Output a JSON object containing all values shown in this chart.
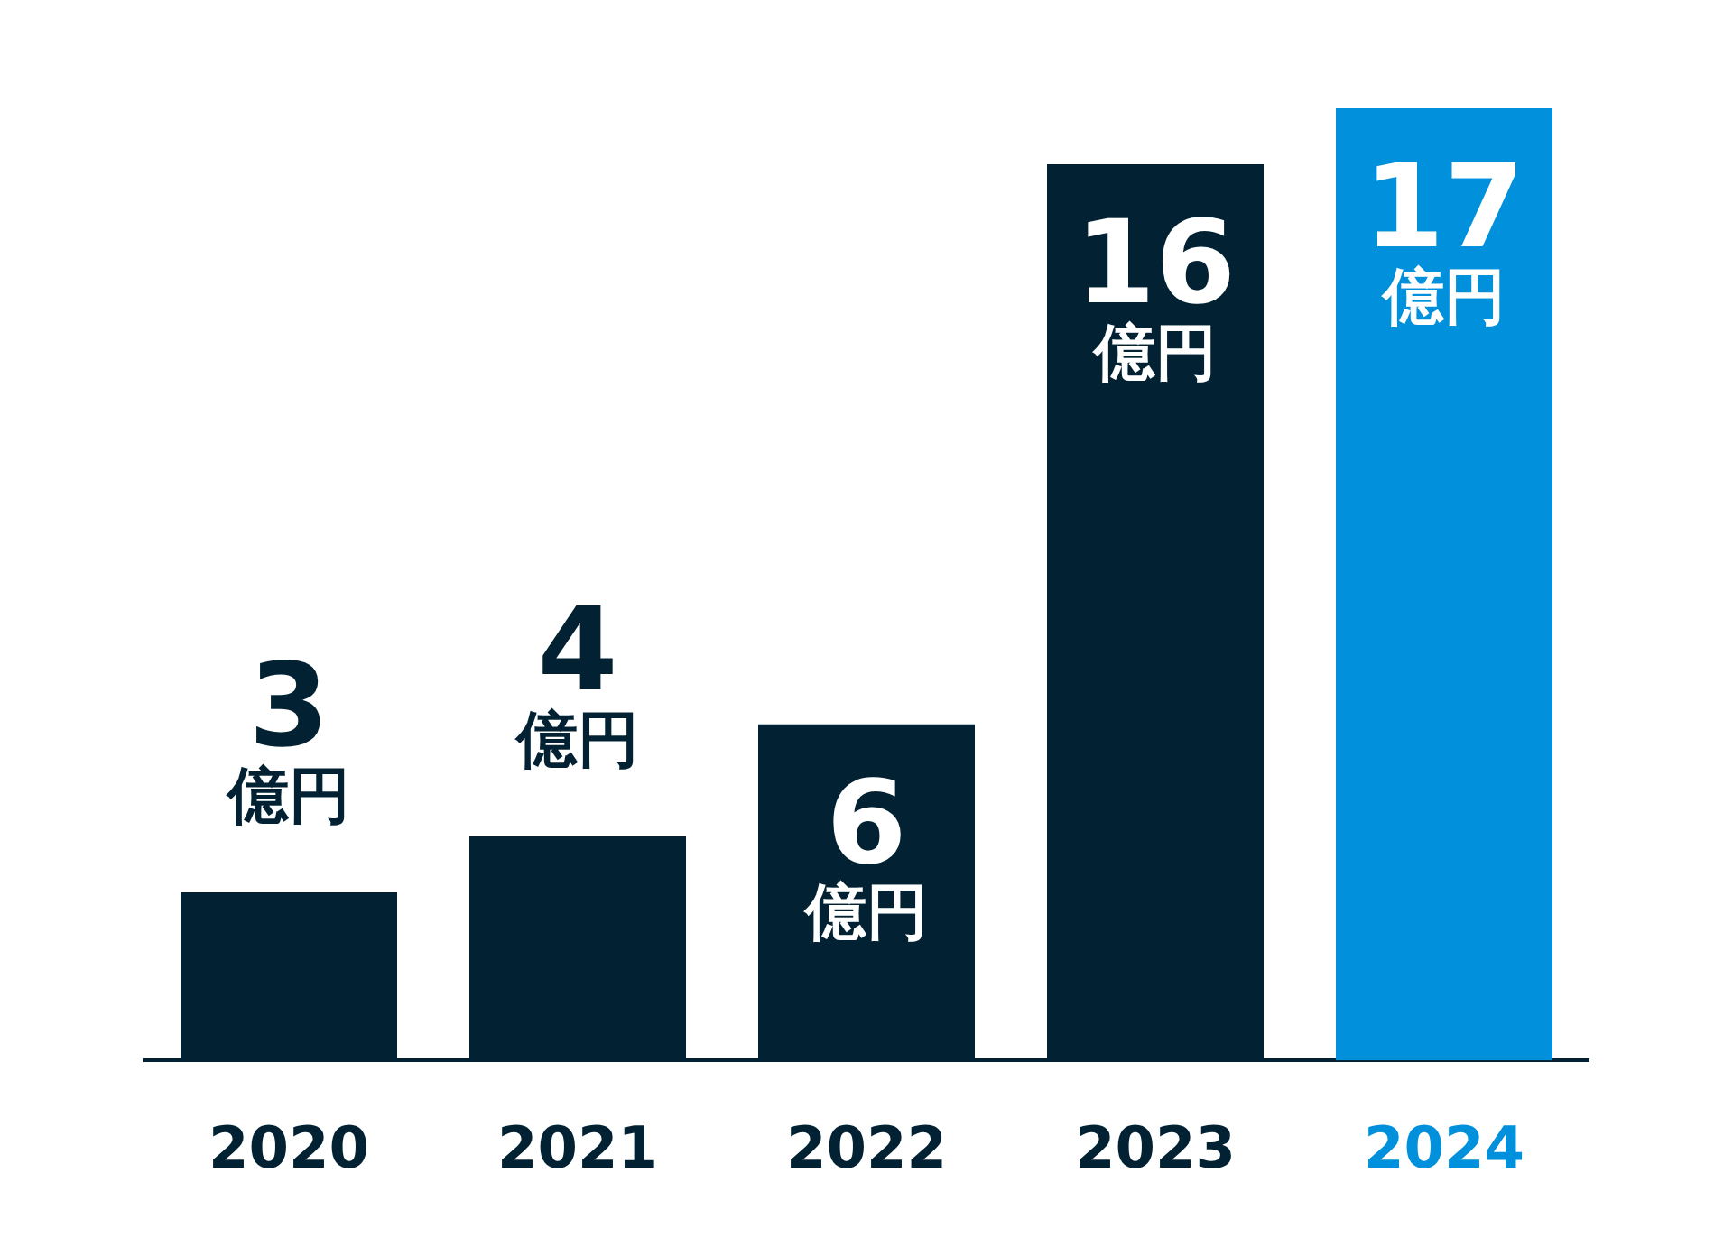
{
  "chart_data": {
    "type": "bar",
    "categories": [
      "2020",
      "2021",
      "2022",
      "2023",
      "2024"
    ],
    "values": [
      3,
      4,
      6,
      16,
      17
    ],
    "colors": [
      "#022233",
      "#022233",
      "#022233",
      "#022233",
      "#0090dc"
    ],
    "value_labels": [
      "3億円",
      "4億円",
      "6億円",
      "16億円",
      "17億円"
    ],
    "grid": false,
    "legend": false,
    "tick_labels": "x"
  }
}
